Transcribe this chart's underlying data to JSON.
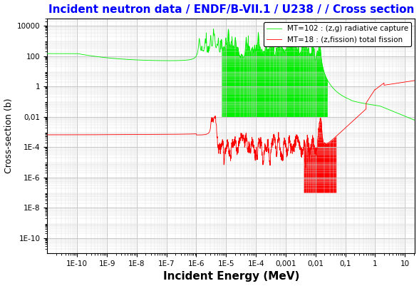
{
  "title": "Incident neutron data / ENDF/B-VII.1 / U238 / / Cross section",
  "title_color": "#0000FF",
  "title_fontsize": 11,
  "xlabel": "Incident Energy (MeV)",
  "ylabel": "Cross-section (b)",
  "xlabel_fontsize": 11,
  "ylabel_fontsize": 9,
  "background_color": "#FFFFFF",
  "plot_bg_color": "#FFFFFF",
  "grid_color": "#BBBBBB",
  "legend_labels": [
    "MT=102 : (z,g) radiative capture",
    "MT=18 : (z,fission) total fission"
  ],
  "legend_colors": [
    "#00EE00",
    "#FF0000"
  ],
  "xtick_labels": [
    "1E-10",
    "1E-9",
    "1E-8",
    "1E-7",
    "1E-6",
    "1E-5",
    "1E-4",
    "0,001",
    "0,01",
    "0,1",
    "1",
    "10"
  ],
  "xtick_values": [
    1e-10,
    1e-09,
    1e-08,
    1e-07,
    1e-06,
    1e-05,
    0.0001,
    0.001,
    0.01,
    0.1,
    1,
    10
  ],
  "ytick_labels": [
    "1E-10",
    "1E-8",
    "1E-6",
    "1E-4",
    "0,01",
    "1",
    "100",
    "10000"
  ],
  "ytick_values": [
    1e-10,
    1e-08,
    1e-06,
    0.0001,
    0.01,
    1,
    100,
    10000
  ]
}
